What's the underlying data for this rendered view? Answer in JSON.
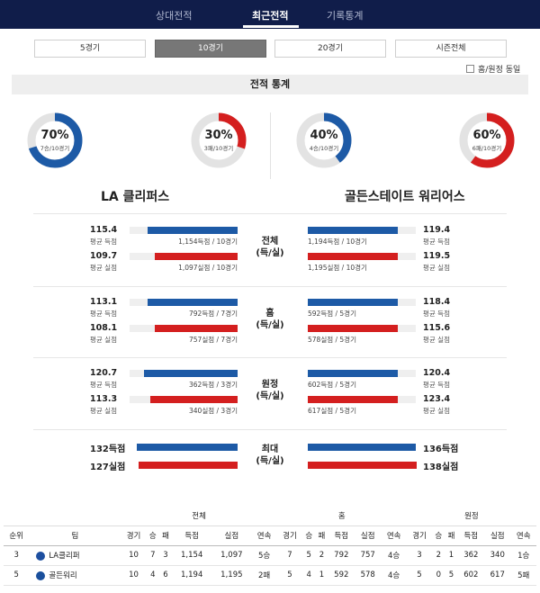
{
  "nav": {
    "tabs": [
      "상대전적",
      "최근전적",
      "기록통계"
    ],
    "active": 1
  },
  "segments": {
    "items": [
      "5경기",
      "10경기",
      "20경기",
      "시즌전체"
    ],
    "active": 1
  },
  "home_away_option": "홈/원정 동일",
  "section_title": "전적 통계",
  "donuts": [
    {
      "pct": "70%",
      "sub": "7승/10경기",
      "fraction": 0.7,
      "color": "#1d5aa6"
    },
    {
      "pct": "30%",
      "sub": "3패/10경기",
      "fraction": 0.3,
      "color": "#d41f1f"
    },
    {
      "pct": "40%",
      "sub": "4승/10경기",
      "fraction": 0.4,
      "color": "#1d5aa6"
    },
    {
      "pct": "60%",
      "sub": "6패/10경기",
      "fraction": 0.6,
      "color": "#d41f1f"
    }
  ],
  "teams": {
    "left": "LA 클리퍼스",
    "right": "골든스테이트 워리어스"
  },
  "labels": {
    "scored": "평균 득점",
    "allowed": "평균 실점"
  },
  "stat_groups": [
    {
      "center": [
        "전체",
        "(득/실)"
      ],
      "left": {
        "scored": "115.4",
        "scored_rec": "1,154득점 / 10경기",
        "allowed": "109.7",
        "allowed_rec": "1,097실점 / 10경기"
      },
      "right": {
        "scored": "119.4",
        "scored_rec": "1,194득점 / 10경기",
        "allowed": "119.5",
        "allowed_rec": "1,195실점 / 10경기"
      }
    },
    {
      "center": [
        "홈",
        "(득/실)"
      ],
      "left": {
        "scored": "113.1",
        "scored_rec": "792득점 / 7경기",
        "allowed": "108.1",
        "allowed_rec": "757실점 / 7경기"
      },
      "right": {
        "scored": "118.4",
        "scored_rec": "592득점 / 5경기",
        "allowed": "115.6",
        "allowed_rec": "578실점 / 5경기"
      }
    },
    {
      "center": [
        "원정",
        "(득/실)"
      ],
      "left": {
        "scored": "120.7",
        "scored_rec": "362득점 / 3경기",
        "allowed": "113.3",
        "allowed_rec": "340실점 / 3경기"
      },
      "right": {
        "scored": "120.4",
        "scored_rec": "602득점 / 5경기",
        "allowed": "123.4",
        "allowed_rec": "617실점 / 5경기"
      }
    }
  ],
  "max_group": {
    "center": [
      "최대",
      "(득/실)"
    ],
    "left": {
      "scored": "132득점",
      "allowed": "127실점"
    },
    "right": {
      "scored": "136득점",
      "allowed": "138실점"
    }
  },
  "table": {
    "group_headers": [
      "전체",
      "홈",
      "원정"
    ],
    "columns": [
      "순위",
      "팀",
      "경기",
      "승",
      "패",
      "득점",
      "실점",
      "연속",
      "경기",
      "승",
      "패",
      "득점",
      "실점",
      "연속",
      "경기",
      "승",
      "패",
      "득점",
      "실점",
      "연속"
    ],
    "rows": [
      {
        "rank": "3",
        "team": "LA클리퍼",
        "logo_color": "#1d4fa0",
        "cells": [
          "10",
          "7",
          "3",
          "1,154",
          "1,097",
          "5승",
          "7",
          "5",
          "2",
          "792",
          "757",
          "4승",
          "3",
          "2",
          "1",
          "362",
          "340",
          "1승"
        ]
      },
      {
        "rank": "5",
        "team": "골든워리",
        "logo_color": "#1a4f9c",
        "cells": [
          "10",
          "4",
          "6",
          "1,194",
          "1,195",
          "2패",
          "5",
          "4",
          "1",
          "592",
          "578",
          "4승",
          "5",
          "0",
          "5",
          "602",
          "617",
          "5패"
        ]
      }
    ]
  }
}
